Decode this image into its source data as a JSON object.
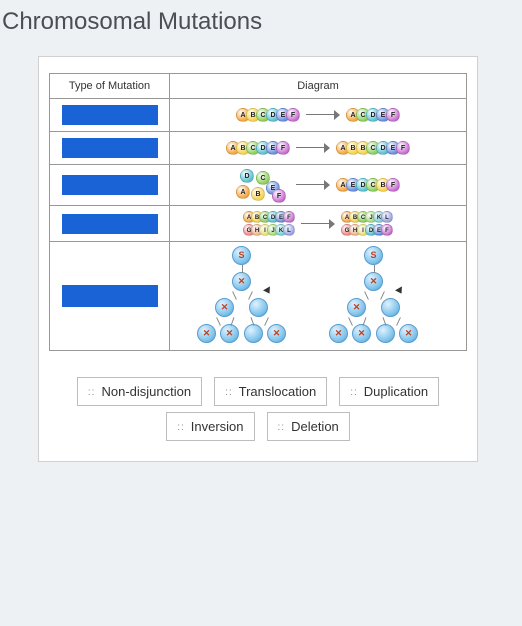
{
  "title": "Chromosomal Mutations",
  "table": {
    "headers": {
      "type": "Type of Mutation",
      "diagram": "Diagram"
    },
    "rows": [
      {
        "kind": "linear",
        "left": [
          {
            "l": "A",
            "c": "#f4a640"
          },
          {
            "l": "B",
            "c": "#f7d24a"
          },
          {
            "l": "C",
            "c": "#8dd05a"
          },
          {
            "l": "D",
            "c": "#5ac2d0"
          },
          {
            "l": "E",
            "c": "#6a8fe0"
          },
          {
            "l": "F",
            "c": "#c86fd0"
          }
        ],
        "right": [
          {
            "l": "A",
            "c": "#f4a640"
          },
          {
            "l": "C",
            "c": "#8dd05a"
          },
          {
            "l": "D",
            "c": "#5ac2d0"
          },
          {
            "l": "E",
            "c": "#6a8fe0"
          },
          {
            "l": "F",
            "c": "#c86fd0"
          }
        ]
      },
      {
        "kind": "linear",
        "left": [
          {
            "l": "A",
            "c": "#f4a640"
          },
          {
            "l": "B",
            "c": "#f7d24a"
          },
          {
            "l": "C",
            "c": "#8dd05a"
          },
          {
            "l": "D",
            "c": "#5ac2d0"
          },
          {
            "l": "E",
            "c": "#6a8fe0"
          },
          {
            "l": "F",
            "c": "#c86fd0"
          }
        ],
        "right": [
          {
            "l": "A",
            "c": "#f4a640"
          },
          {
            "l": "B",
            "c": "#f7d24a"
          },
          {
            "l": "B",
            "c": "#f7d24a"
          },
          {
            "l": "C",
            "c": "#8dd05a"
          },
          {
            "l": "D",
            "c": "#5ac2d0"
          },
          {
            "l": "E",
            "c": "#6a8fe0"
          },
          {
            "l": "F",
            "c": "#c86fd0"
          }
        ]
      },
      {
        "kind": "inversion",
        "swirl": [
          {
            "l": "D",
            "c": "#5ac2d0",
            "x": 4,
            "y": 0
          },
          {
            "l": "C",
            "c": "#8dd05a",
            "x": 20,
            "y": 2
          },
          {
            "l": "A",
            "c": "#f4a640",
            "x": 0,
            "y": 16
          },
          {
            "l": "B",
            "c": "#f7d24a",
            "x": 15,
            "y": 18
          },
          {
            "l": "E",
            "c": "#6a8fe0",
            "x": 30,
            "y": 12
          },
          {
            "l": "F",
            "c": "#c86fd0",
            "x": 36,
            "y": 20
          }
        ],
        "right": [
          {
            "l": "A",
            "c": "#f4a640"
          },
          {
            "l": "E",
            "c": "#6a8fe0"
          },
          {
            "l": "D",
            "c": "#5ac2d0"
          },
          {
            "l": "C",
            "c": "#8dd05a"
          },
          {
            "l": "B",
            "c": "#f7d24a"
          },
          {
            "l": "F",
            "c": "#c86fd0"
          }
        ]
      },
      {
        "kind": "translocation",
        "left_top": [
          {
            "l": "A",
            "c": "#f4a640"
          },
          {
            "l": "B",
            "c": "#f7d24a"
          },
          {
            "l": "C",
            "c": "#8dd05a"
          },
          {
            "l": "D",
            "c": "#5ac2d0"
          },
          {
            "l": "E",
            "c": "#6a8fe0"
          },
          {
            "l": "F",
            "c": "#c86fd0"
          }
        ],
        "left_bot": [
          {
            "l": "G",
            "c": "#f08a8a"
          },
          {
            "l": "H",
            "c": "#f0b48a"
          },
          {
            "l": "I",
            "c": "#e9e07a"
          },
          {
            "l": "J",
            "c": "#a5dd7a"
          },
          {
            "l": "K",
            "c": "#7ad0d5"
          },
          {
            "l": "L",
            "c": "#9aa5e5"
          }
        ],
        "right_top": [
          {
            "l": "A",
            "c": "#f4a640"
          },
          {
            "l": "B",
            "c": "#f7d24a"
          },
          {
            "l": "C",
            "c": "#8dd05a"
          },
          {
            "l": "J",
            "c": "#a5dd7a"
          },
          {
            "l": "K",
            "c": "#7ad0d5"
          },
          {
            "l": "L",
            "c": "#9aa5e5"
          }
        ],
        "right_bot": [
          {
            "l": "G",
            "c": "#f08a8a"
          },
          {
            "l": "H",
            "c": "#f0b48a"
          },
          {
            "l": "I",
            "c": "#e9e07a"
          },
          {
            "l": "D",
            "c": "#5ac2d0"
          },
          {
            "l": "E",
            "c": "#6a8fe0"
          },
          {
            "l": "F",
            "c": "#c86fd0"
          }
        ]
      },
      {
        "kind": "nondisjunction"
      }
    ]
  },
  "answers": {
    "row1": [
      "Non-disjunction",
      "Translocation",
      "Duplication"
    ],
    "row2": [
      "Inversion",
      "Deletion"
    ]
  },
  "colors": {
    "slot": "#1a63d6",
    "page_bg": "#eef1f3",
    "sheet_bg": "#ffffff"
  }
}
